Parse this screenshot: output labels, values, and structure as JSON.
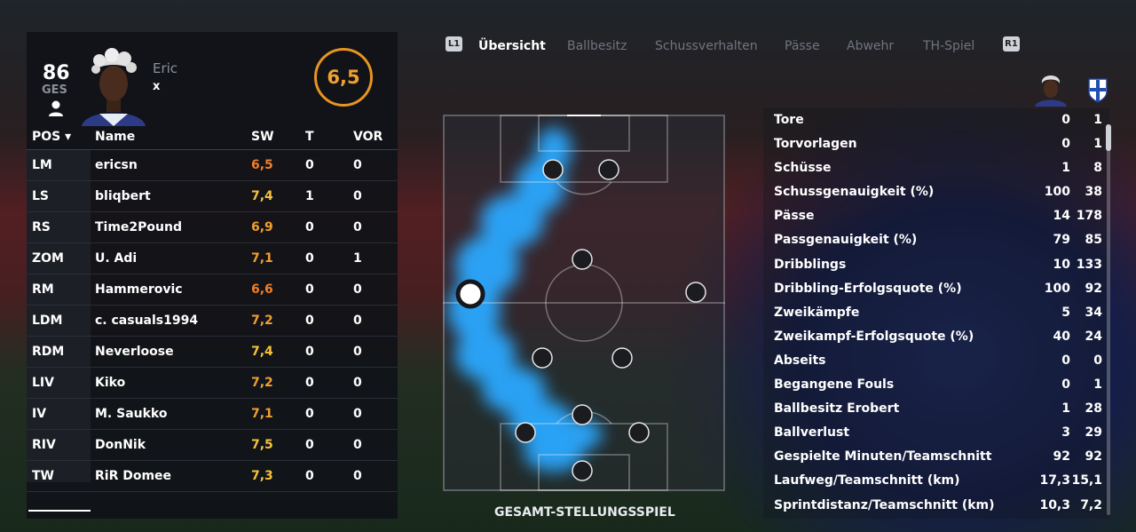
{
  "player": {
    "overall": "86",
    "overall_label": "GES",
    "name": "Eric",
    "nation": "x",
    "match_rating": "6,5"
  },
  "table": {
    "headers": {
      "pos": "POS ▾",
      "name": "Name",
      "sw": "SW",
      "t": "T",
      "vor": "VOR"
    },
    "rows": [
      {
        "pos": "LM",
        "name": "ericsn",
        "sw": "6,5",
        "t": "0",
        "vor": "0"
      },
      {
        "pos": "LS",
        "name": "bliqbert",
        "sw": "7,4",
        "t": "1",
        "vor": "0"
      },
      {
        "pos": "RS",
        "name": "Time2Pound",
        "sw": "6,9",
        "t": "0",
        "vor": "0"
      },
      {
        "pos": "ZOM",
        "name": "U. Adi",
        "sw": "7,1",
        "t": "0",
        "vor": "1"
      },
      {
        "pos": "RM",
        "name": "Hammerovic",
        "sw": "6,6",
        "t": "0",
        "vor": "0"
      },
      {
        "pos": "LDM",
        "name": "c. casuals1994",
        "sw": "7,2",
        "t": "0",
        "vor": "0"
      },
      {
        "pos": "RDM",
        "name": "Neverloose",
        "sw": "7,4",
        "t": "0",
        "vor": "0"
      },
      {
        "pos": "LIV",
        "name": "Kiko",
        "sw": "7,2",
        "t": "0",
        "vor": "0"
      },
      {
        "pos": "IV",
        "name": "M. Saukko",
        "sw": "7,1",
        "t": "0",
        "vor": "0"
      },
      {
        "pos": "RIV",
        "name": "DonNik",
        "sw": "7,5",
        "t": "0",
        "vor": "0"
      },
      {
        "pos": "TW",
        "name": "RiR Domee",
        "sw": "7,3",
        "t": "0",
        "vor": "0"
      }
    ]
  },
  "tabs": {
    "left_button": "L1",
    "right_button": "R1",
    "items": [
      "Übersicht",
      "Ballbesitz",
      "Schussverhalten",
      "Pässe",
      "Abwehr",
      "TH-Spiel"
    ],
    "active": "Übersicht"
  },
  "pitch": {
    "title": "GESAMT-STELLUNGSSPIEL"
  },
  "stats": [
    {
      "label": "Tore",
      "player": "0",
      "team": "1"
    },
    {
      "label": "Torvorlagen",
      "player": "0",
      "team": "1"
    },
    {
      "label": "Schüsse",
      "player": "1",
      "team": "8"
    },
    {
      "label": "Schussgenauigkeit (%)",
      "player": "100",
      "team": "38"
    },
    {
      "label": "Pässe",
      "player": "14",
      "team": "178"
    },
    {
      "label": "Passgenauigkeit (%)",
      "player": "79",
      "team": "85"
    },
    {
      "label": "Dribblings",
      "player": "10",
      "team": "133"
    },
    {
      "label": "Dribbling-Erfolgsquote (%)",
      "player": "100",
      "team": "92"
    },
    {
      "label": "Zweikämpfe",
      "player": "5",
      "team": "34"
    },
    {
      "label": "Zweikampf-Erfolgsquote (%)",
      "player": "40",
      "team": "24"
    },
    {
      "label": "Abseits",
      "player": "0",
      "team": "0"
    },
    {
      "label": "Begangene Fouls",
      "player": "0",
      "team": "1"
    },
    {
      "label": "Ballbesitz Erobert",
      "player": "1",
      "team": "28"
    },
    {
      "label": "Ballverlust",
      "player": "3",
      "team": "29"
    },
    {
      "label": "Gespielte Minuten/Teamschnitt",
      "player": "92",
      "team": "92"
    },
    {
      "label": "Laufweg/Teamschnitt (km)",
      "player": "17,3",
      "team": "15,1"
    },
    {
      "label": "Sprintdistanz/Teamschnitt (km)",
      "player": "10,3",
      "team": "7,2"
    }
  ],
  "colors": {
    "accent": "#e89420",
    "heatmap": "#2aa8ff",
    "panel": "#101218"
  }
}
